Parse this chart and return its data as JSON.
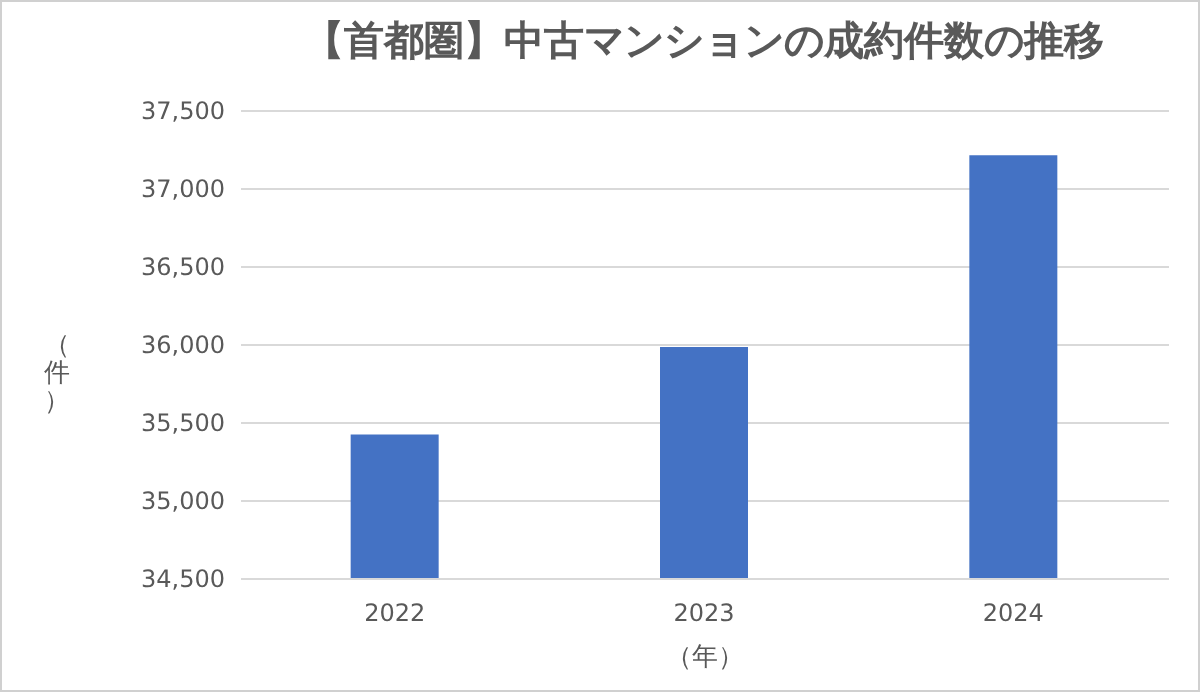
{
  "chart_data": {
    "type": "bar",
    "title": "【首都圏】中古マンションの成約件数の推移",
    "xlabel": "（年）",
    "ylabel": "（件）",
    "categories": [
      "2022",
      "2023",
      "2024"
    ],
    "series": [
      {
        "color": "#4472c4",
        "values": [
          35420,
          35980,
          37210
        ]
      }
    ],
    "ylim": [
      34500,
      37500
    ],
    "yticks": [
      {
        "value": 34500,
        "label": "34,500"
      },
      {
        "value": 35000,
        "label": "35,000"
      },
      {
        "value": 35500,
        "label": "35,500"
      },
      {
        "value": 36000,
        "label": "36,000"
      },
      {
        "value": 36500,
        "label": "36,500"
      },
      {
        "value": 37000,
        "label": "37,000"
      },
      {
        "value": 37500,
        "label": "37,500"
      }
    ],
    "grid": "y",
    "legend": false
  }
}
